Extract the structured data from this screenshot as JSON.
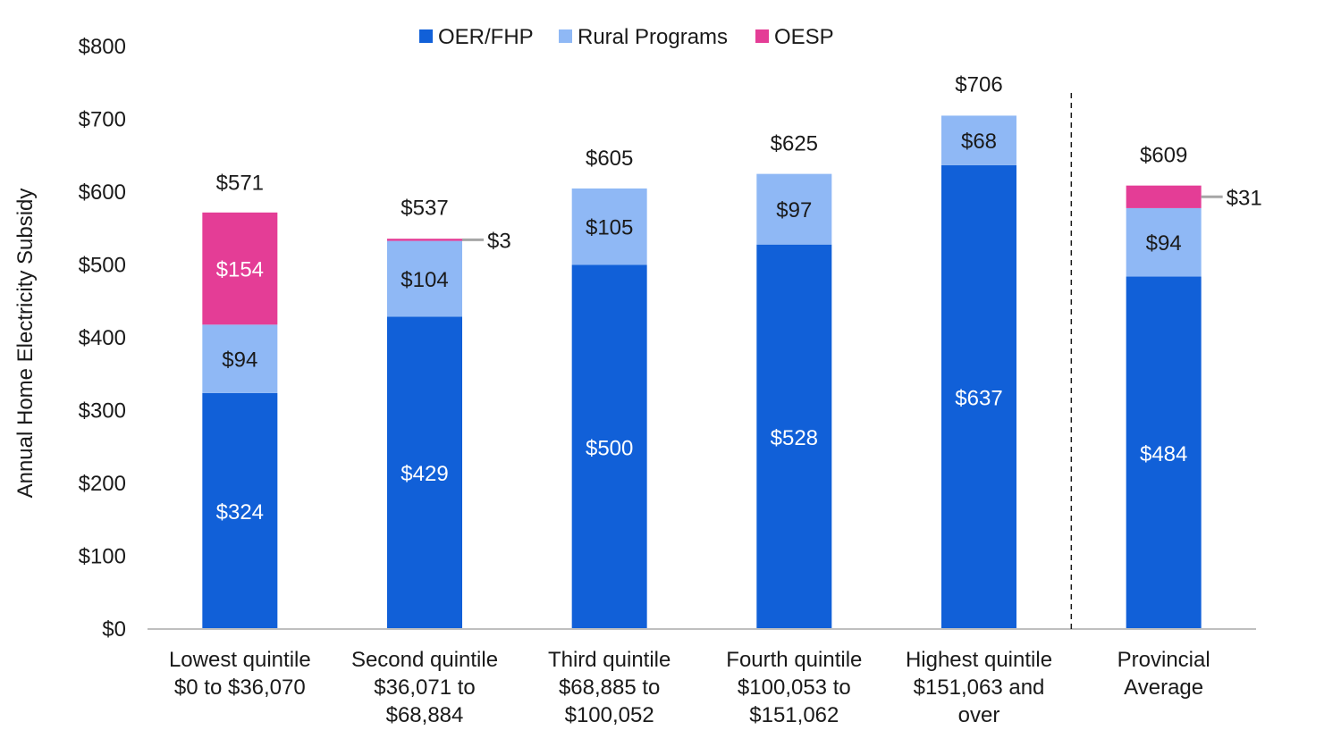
{
  "chart_data": {
    "type": "bar",
    "stacked": true,
    "ylabel": "Annual Home Electricity Subsidy",
    "xlabel": "",
    "ylim": [
      0,
      800
    ],
    "yticks": [
      0,
      100,
      200,
      300,
      400,
      500,
      600,
      700,
      800
    ],
    "y_tick_labels": [
      "$0",
      "$100",
      "$200",
      "$300",
      "$400",
      "$500",
      "$600",
      "$700",
      "$800"
    ],
    "grid": false,
    "legend_position": "top",
    "categories": [
      [
        "Lowest quintile",
        "$0 to $36,070"
      ],
      [
        "Second quintile",
        "$36,071 to",
        "$68,884"
      ],
      [
        "Third quintile",
        "$68,885 to",
        "$100,052"
      ],
      [
        "Fourth quintile",
        "$100,053 to",
        "$151,062"
      ],
      [
        "Highest quintile",
        "$151,063 and",
        "over"
      ],
      [
        "Provincial",
        "Average"
      ]
    ],
    "series": [
      {
        "name": "OER/FHP",
        "color": "#1160d8",
        "label_color": "#ffffff",
        "values": [
          324,
          429,
          500,
          528,
          637,
          484
        ],
        "labels": [
          "$324",
          "$429",
          "$500",
          "$528",
          "$637",
          "$484"
        ]
      },
      {
        "name": "Rural Programs",
        "color": "#8fb8f5",
        "label_color": "#1a1a1a",
        "values": [
          94,
          104,
          105,
          97,
          68,
          94
        ],
        "labels": [
          "$94",
          "$104",
          "$105",
          "$97",
          "$68",
          "$94"
        ]
      },
      {
        "name": "OESP",
        "color": "#e43d96",
        "label_color": "#ffffff",
        "values": [
          154,
          3,
          0,
          0,
          0,
          31
        ],
        "labels": [
          "$154",
          "$3",
          "",
          "",
          "",
          "$31"
        ]
      }
    ],
    "totals": [
      571,
      537,
      605,
      625,
      706,
      609
    ],
    "total_labels": [
      "$571",
      "$537",
      "$605",
      "$625",
      "$706",
      "$609"
    ],
    "callout_series_index": 2,
    "callout_categories": [
      1,
      5
    ],
    "separator_after_category": 4
  }
}
